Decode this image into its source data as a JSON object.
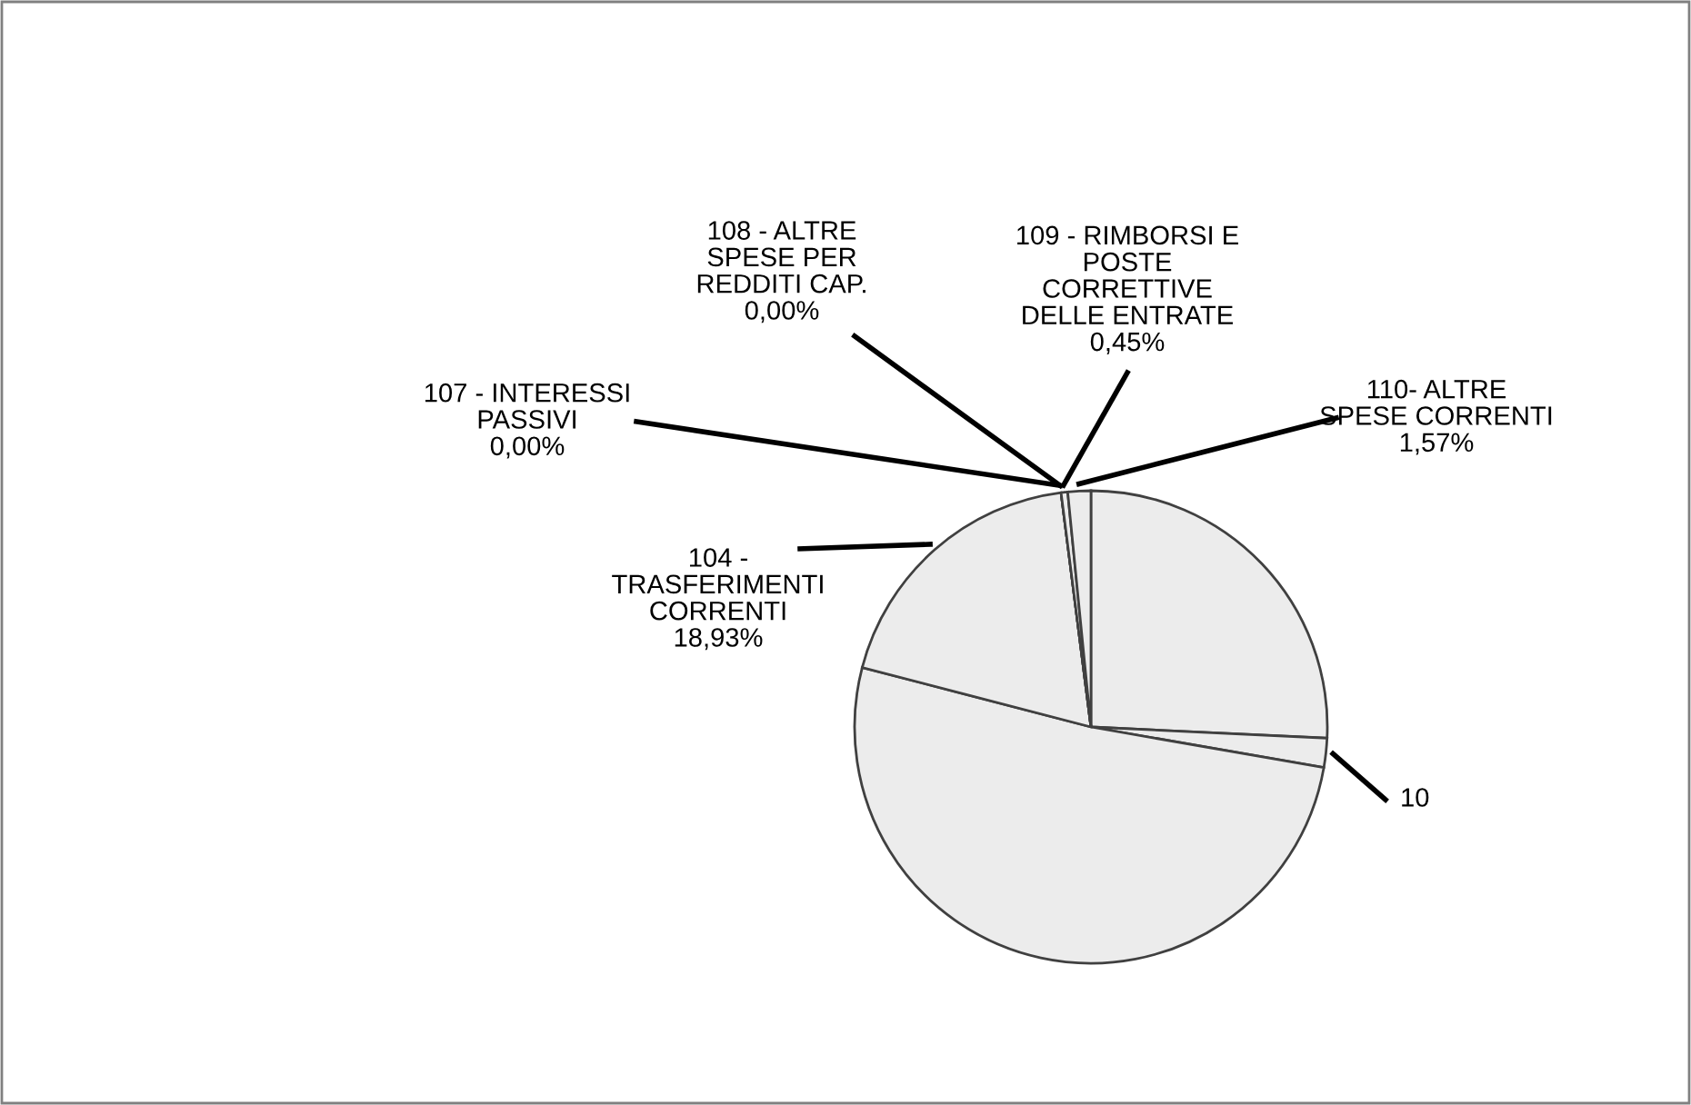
{
  "chart_data": {
    "type": "pie",
    "categories": [
      null,
      "10",
      null,
      "104 -\nTRASFERIMENTI\nCORRENTI",
      "107 - INTERESSI\nPASSIVI",
      "108 - ALTRE\nSPESE PER\nREDDITI CAP.",
      "109 - RIMBORSI E\nPOSTE\nCORRETTIVE\nDELLE ENTRATE",
      "110- ALTRE\nSPESE CORRENTI"
    ],
    "values": [
      25.75,
      2.0,
      51.3,
      18.93,
      0.0,
      0.0,
      0.45,
      1.57
    ],
    "value_labels": [
      null,
      null,
      null,
      "18,93%",
      "0,00%",
      "0,00%",
      "0,45%",
      "1,57%"
    ],
    "colors": [
      "#ececec",
      "#ececec",
      "#ececec",
      "#ececec",
      "#ececec",
      "#ececec",
      "#ececec",
      "#ececec"
    ]
  }
}
